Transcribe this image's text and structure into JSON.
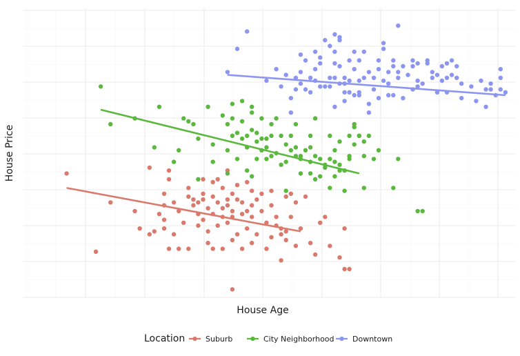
{
  "chart_data": {
    "type": "scatter",
    "title": "",
    "xlabel": "House Age",
    "ylabel": "House Price",
    "xlim": [
      0,
      100
    ],
    "ylim": [
      0,
      100
    ],
    "grid": true,
    "legend": {
      "title": "Location",
      "placement": "bottom"
    },
    "series": [
      {
        "name": "Suburb",
        "color": "#D97A6C",
        "trend": {
          "x": [
            8,
            56
          ],
          "y": [
            38,
            23
          ]
        },
        "points": [
          [
            8,
            43
          ],
          [
            14,
            16
          ],
          [
            17,
            33
          ],
          [
            22,
            30
          ],
          [
            23,
            24
          ],
          [
            25,
            45
          ],
          [
            25,
            22
          ],
          [
            26,
            23
          ],
          [
            27,
            29
          ],
          [
            28,
            36
          ],
          [
            28,
            32
          ],
          [
            28,
            27
          ],
          [
            28,
            24
          ],
          [
            29,
            44
          ],
          [
            29,
            17
          ],
          [
            29,
            41
          ],
          [
            30,
            33
          ],
          [
            30,
            22
          ],
          [
            31,
            30
          ],
          [
            31,
            17
          ],
          [
            32,
            26
          ],
          [
            33,
            38
          ],
          [
            33,
            35
          ],
          [
            33,
            17
          ],
          [
            34,
            34
          ],
          [
            34,
            32
          ],
          [
            35,
            33
          ],
          [
            35,
            29
          ],
          [
            35,
            25
          ],
          [
            36,
            36
          ],
          [
            36,
            34
          ],
          [
            36,
            41
          ],
          [
            36,
            27
          ],
          [
            37,
            31
          ],
          [
            37,
            23
          ],
          [
            37,
            19
          ],
          [
            38,
            35
          ],
          [
            38,
            29
          ],
          [
            38,
            40
          ],
          [
            38,
            17
          ],
          [
            39,
            41
          ],
          [
            39,
            33
          ],
          [
            39,
            25
          ],
          [
            40,
            38
          ],
          [
            40,
            31
          ],
          [
            40,
            28
          ],
          [
            40,
            17
          ],
          [
            41,
            34
          ],
          [
            41,
            32
          ],
          [
            41,
            44
          ],
          [
            41,
            26
          ],
          [
            42,
            36
          ],
          [
            42,
            30
          ],
          [
            42,
            28
          ],
          [
            42,
            20
          ],
          [
            42,
            3
          ],
          [
            43,
            39
          ],
          [
            43,
            34
          ],
          [
            43,
            22
          ],
          [
            44,
            33
          ],
          [
            44,
            29
          ],
          [
            44,
            17
          ],
          [
            45,
            30
          ],
          [
            45,
            40
          ],
          [
            45,
            24
          ],
          [
            46,
            37
          ],
          [
            46,
            32
          ],
          [
            46,
            28
          ],
          [
            46,
            19
          ],
          [
            47,
            34
          ],
          [
            47,
            22
          ],
          [
            48,
            30
          ],
          [
            48,
            36
          ],
          [
            49,
            26
          ],
          [
            49,
            17
          ],
          [
            50,
            32
          ],
          [
            50,
            37
          ],
          [
            50,
            21
          ],
          [
            51,
            28
          ],
          [
            51,
            25
          ],
          [
            52,
            24
          ],
          [
            52,
            22
          ],
          [
            52,
            13
          ],
          [
            53,
            23
          ],
          [
            53,
            20
          ],
          [
            53,
            35
          ],
          [
            54,
            36
          ],
          [
            54,
            28
          ],
          [
            55,
            18
          ],
          [
            55,
            33
          ],
          [
            56,
            24
          ],
          [
            57,
            35
          ],
          [
            58,
            19
          ],
          [
            59,
            15
          ],
          [
            60,
            26
          ],
          [
            61,
            28
          ],
          [
            62,
            18
          ],
          [
            64,
            14
          ],
          [
            65,
            10
          ],
          [
            65,
            24
          ],
          [
            66,
            10
          ]
        ]
      },
      {
        "name": "City Neighborhood",
        "color": "#5BB83F",
        "trend": {
          "x": [
            15,
            68
          ],
          "y": [
            65,
            43
          ]
        },
        "points": [
          [
            15,
            73
          ],
          [
            17,
            60
          ],
          [
            22,
            62
          ],
          [
            26,
            52
          ],
          [
            27,
            66
          ],
          [
            30,
            47
          ],
          [
            31,
            51
          ],
          [
            32,
            62
          ],
          [
            33,
            61
          ],
          [
            34,
            60
          ],
          [
            35,
            41
          ],
          [
            35,
            55
          ],
          [
            37,
            66
          ],
          [
            38,
            47
          ],
          [
            38,
            53
          ],
          [
            40,
            63
          ],
          [
            41,
            60
          ],
          [
            41,
            51
          ],
          [
            41,
            43
          ],
          [
            42,
            67
          ],
          [
            42,
            62
          ],
          [
            42,
            56
          ],
          [
            43,
            57
          ],
          [
            43,
            48
          ],
          [
            44,
            68
          ],
          [
            44,
            61
          ],
          [
            44,
            55
          ],
          [
            45,
            56
          ],
          [
            45,
            52
          ],
          [
            45,
            44
          ],
          [
            46,
            66
          ],
          [
            46,
            64
          ],
          [
            46,
            58
          ],
          [
            46,
            42
          ],
          [
            47,
            54
          ],
          [
            47,
            48
          ],
          [
            47,
            57
          ],
          [
            48,
            51
          ],
          [
            48,
            62
          ],
          [
            48,
            55
          ],
          [
            49,
            52
          ],
          [
            49,
            48
          ],
          [
            49,
            55
          ],
          [
            50,
            49
          ],
          [
            50,
            56
          ],
          [
            50,
            60
          ],
          [
            51,
            50
          ],
          [
            51,
            62
          ],
          [
            52,
            56
          ],
          [
            52,
            46
          ],
          [
            53,
            37
          ],
          [
            53,
            47
          ],
          [
            53,
            53
          ],
          [
            54,
            51
          ],
          [
            54,
            56
          ],
          [
            55,
            52
          ],
          [
            55,
            60
          ],
          [
            55,
            49
          ],
          [
            56,
            48
          ],
          [
            56,
            43
          ],
          [
            56,
            49
          ],
          [
            57,
            51
          ],
          [
            58,
            52
          ],
          [
            58,
            56
          ],
          [
            58,
            47
          ],
          [
            58,
            43
          ],
          [
            59,
            62
          ],
          [
            59,
            49
          ],
          [
            59,
            41
          ],
          [
            60,
            42
          ],
          [
            60,
            48
          ],
          [
            61,
            46
          ],
          [
            61,
            45
          ],
          [
            62,
            48
          ],
          [
            62,
            56
          ],
          [
            62,
            38
          ],
          [
            63,
            51
          ],
          [
            63,
            42
          ],
          [
            63,
            47
          ],
          [
            64,
            46
          ],
          [
            64,
            54
          ],
          [
            64,
            44
          ],
          [
            65,
            37
          ],
          [
            65,
            44
          ],
          [
            66,
            48
          ],
          [
            66,
            49
          ],
          [
            66,
            56
          ],
          [
            67,
            60
          ],
          [
            67,
            53
          ],
          [
            67,
            59
          ],
          [
            68,
            56
          ],
          [
            68,
            56
          ],
          [
            69,
            38
          ],
          [
            69,
            49
          ],
          [
            69,
            54
          ],
          [
            70,
            56
          ],
          [
            71,
            48
          ],
          [
            72,
            51
          ],
          [
            75,
            38
          ],
          [
            76,
            48
          ],
          [
            80,
            30
          ],
          [
            81,
            30
          ]
        ]
      },
      {
        "name": "Downtown",
        "color": "#8C96F0",
        "trend": {
          "x": [
            41,
            98
          ],
          "y": [
            77,
            70
          ]
        },
        "points": [
          [
            41,
            78
          ],
          [
            43,
            86
          ],
          [
            45,
            92
          ],
          [
            49,
            75
          ],
          [
            51,
            79
          ],
          [
            52,
            73
          ],
          [
            53,
            77
          ],
          [
            54,
            64
          ],
          [
            54,
            69
          ],
          [
            55,
            72
          ],
          [
            55,
            76
          ],
          [
            56,
            78
          ],
          [
            56,
            74
          ],
          [
            56,
            84
          ],
          [
            57,
            82
          ],
          [
            57,
            72
          ],
          [
            58,
            76
          ],
          [
            58,
            71
          ],
          [
            59,
            85
          ],
          [
            59,
            79
          ],
          [
            59,
            75
          ],
          [
            60,
            81
          ],
          [
            60,
            73
          ],
          [
            60,
            83
          ],
          [
            61,
            89
          ],
          [
            61,
            73
          ],
          [
            62,
            76
          ],
          [
            62,
            73
          ],
          [
            62,
            87
          ],
          [
            63,
            91
          ],
          [
            63,
            85
          ],
          [
            63,
            81
          ],
          [
            63,
            66
          ],
          [
            63,
            76
          ],
          [
            64,
            80
          ],
          [
            64,
            74
          ],
          [
            64,
            89
          ],
          [
            64,
            90
          ],
          [
            65,
            68
          ],
          [
            65,
            74
          ],
          [
            65,
            76
          ],
          [
            65,
            71
          ],
          [
            66,
            82
          ],
          [
            66,
            71
          ],
          [
            66,
            75
          ],
          [
            67,
            79
          ],
          [
            67,
            85
          ],
          [
            67,
            70
          ],
          [
            68,
            70
          ],
          [
            68,
            75
          ],
          [
            68,
            71
          ],
          [
            68,
            82
          ],
          [
            69,
            76
          ],
          [
            69,
            85
          ],
          [
            70,
            67
          ],
          [
            70,
            64
          ],
          [
            70,
            78
          ],
          [
            71,
            72
          ],
          [
            71,
            76
          ],
          [
            72,
            79
          ],
          [
            72,
            82
          ],
          [
            72,
            69
          ],
          [
            73,
            86
          ],
          [
            73,
            75
          ],
          [
            73,
            88
          ],
          [
            74,
            74
          ],
          [
            74,
            70
          ],
          [
            74,
            78
          ],
          [
            75,
            80
          ],
          [
            75,
            82
          ],
          [
            75,
            70
          ],
          [
            76,
            78
          ],
          [
            76,
            94
          ],
          [
            76,
            76
          ],
          [
            77,
            80
          ],
          [
            77,
            69
          ],
          [
            78,
            77
          ],
          [
            79,
            80
          ],
          [
            79,
            82
          ],
          [
            79,
            72
          ],
          [
            80,
            81
          ],
          [
            80,
            75
          ],
          [
            80,
            73
          ],
          [
            81,
            74
          ],
          [
            82,
            82
          ],
          [
            82,
            81
          ],
          [
            83,
            76
          ],
          [
            83,
            78
          ],
          [
            84,
            77
          ],
          [
            84,
            71
          ],
          [
            85,
            80
          ],
          [
            85,
            75
          ],
          [
            86,
            81
          ],
          [
            86,
            76
          ],
          [
            86,
            71
          ],
          [
            87,
            82
          ],
          [
            87,
            77
          ],
          [
            88,
            80
          ],
          [
            88,
            76
          ],
          [
            89,
            69
          ],
          [
            89,
            74
          ],
          [
            91,
            73
          ],
          [
            92,
            68
          ],
          [
            93,
            75
          ],
          [
            94,
            72
          ],
          [
            94,
            66
          ],
          [
            95,
            74
          ],
          [
            95,
            72
          ],
          [
            96,
            70
          ],
          [
            97,
            72
          ],
          [
            97,
            76
          ],
          [
            97,
            79
          ],
          [
            98,
            71
          ]
        ]
      }
    ]
  }
}
